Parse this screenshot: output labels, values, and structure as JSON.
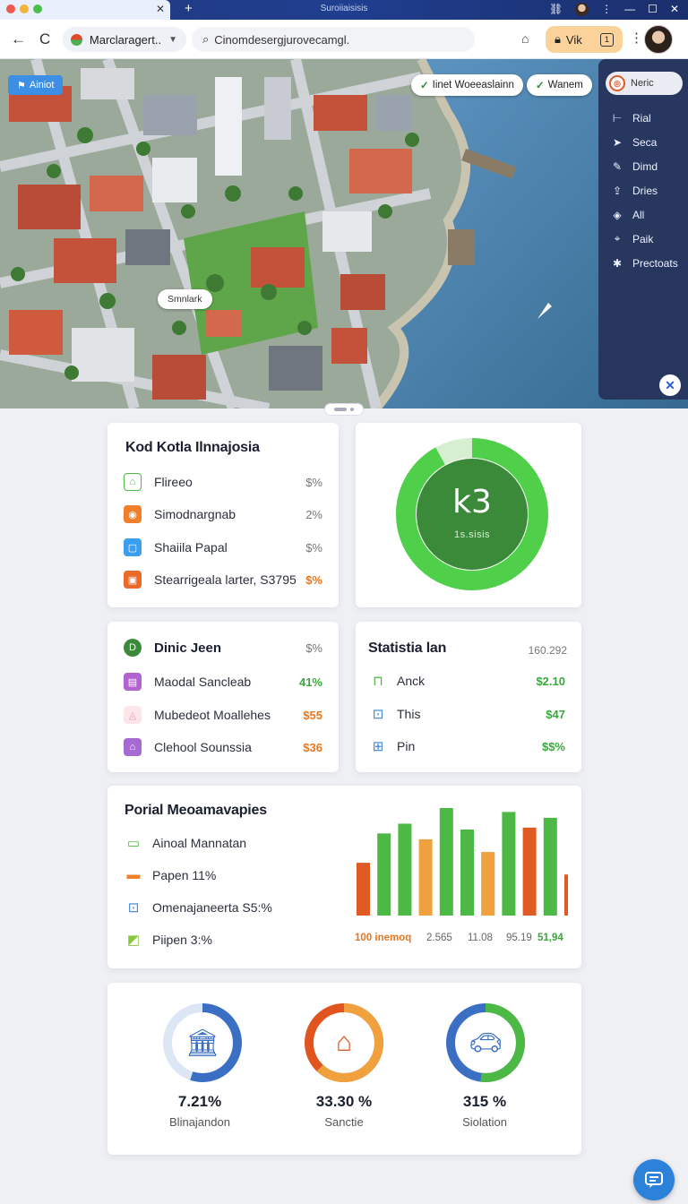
{
  "browser": {
    "window_title": "Suroiiaisisis",
    "new_tab": "+",
    "tab_close": "✕",
    "site_chip": "Marclaragert..",
    "url": "Cinomdesergjurovecamgl.",
    "profile_label": "Vik",
    "profile_badge": "1"
  },
  "map": {
    "tag": "Ainiot",
    "chip_1": "Iinet Woeeaslainn",
    "chip_2": "Wanem",
    "place_label": "Smnlark"
  },
  "layers": {
    "header": "Neric",
    "items": [
      {
        "label": "Rial",
        "icon": "ruler-icon"
      },
      {
        "label": "Seca",
        "icon": "arrow-icon"
      },
      {
        "label": "Dimd",
        "icon": "pen-icon"
      },
      {
        "label": "Dries",
        "icon": "upload-icon"
      },
      {
        "label": "All",
        "icon": "layers-icon"
      },
      {
        "label": "Paik",
        "icon": "pin-icon"
      },
      {
        "label": "Prectoats",
        "icon": "star-icon"
      }
    ]
  },
  "card1": {
    "title": "Kod Kotla Ilnnajosia",
    "rows": [
      {
        "label": "Flireeo",
        "value": "$%"
      },
      {
        "label": "Simodnargnab",
        "value": "2%"
      },
      {
        "label": "Shaiila Papal",
        "value": "$%"
      },
      {
        "label": "Stearrigeala larter, S3795",
        "value": "$%"
      }
    ]
  },
  "donut": {
    "value": "k3",
    "label": "1s.sisis",
    "fraction": 0.92
  },
  "card3": {
    "title": "Dinic Jeen",
    "title_value": "$%",
    "rows": [
      {
        "label": "Maodal Sancleab",
        "value": "41%"
      },
      {
        "label": "Mubedeot Moallehes",
        "value": "$55"
      },
      {
        "label": "Clehool Sounssia",
        "value": "$36"
      }
    ]
  },
  "card4": {
    "title": "Statistia lan",
    "title_value": "160.292",
    "rows": [
      {
        "label": "Anck",
        "value": "$2.10"
      },
      {
        "label": "This",
        "value": "$47"
      },
      {
        "label": "Pin",
        "value": "$$%"
      }
    ]
  },
  "card5": {
    "title": "Porial Meoamavapies",
    "rows": [
      {
        "label": "Ainoal Mannatan"
      },
      {
        "label": "Papen 11%"
      },
      {
        "label": "Omenajaneerta S5:%"
      },
      {
        "label": "Piipen 3:%"
      }
    ],
    "footer": [
      "100 inemoq",
      "2.565",
      "11.08",
      "95.19",
      "51,94"
    ]
  },
  "chart_data": {
    "type": "bar",
    "values": [
      54,
      84,
      94,
      78,
      110,
      88,
      65,
      106,
      90,
      100,
      42
    ],
    "colors": [
      "#e05a24",
      "#4cb944",
      "#4cb944",
      "#f0a03c",
      "#4cb944",
      "#4cb944",
      "#f0a03c",
      "#4cb944",
      "#e05a24",
      "#4cb944",
      "#e05a24"
    ],
    "ylim": [
      0,
      110
    ]
  },
  "gauges": [
    {
      "value": "7.21%",
      "label": "Blinajandon",
      "fraction": 0.55,
      "color": "#3a6fc4",
      "icon": "bank-icon"
    },
    {
      "value": "33.30 %",
      "label": "Sanctie",
      "fraction": 0.62,
      "color": "#f0a03c",
      "color2": "#e0541f",
      "icon": "house-icon"
    },
    {
      "value": "315 %",
      "label": "Siolation",
      "fraction": 0.52,
      "color": "#4cb944",
      "color2": "#3a6fc4",
      "icon": "car-icon"
    }
  ]
}
